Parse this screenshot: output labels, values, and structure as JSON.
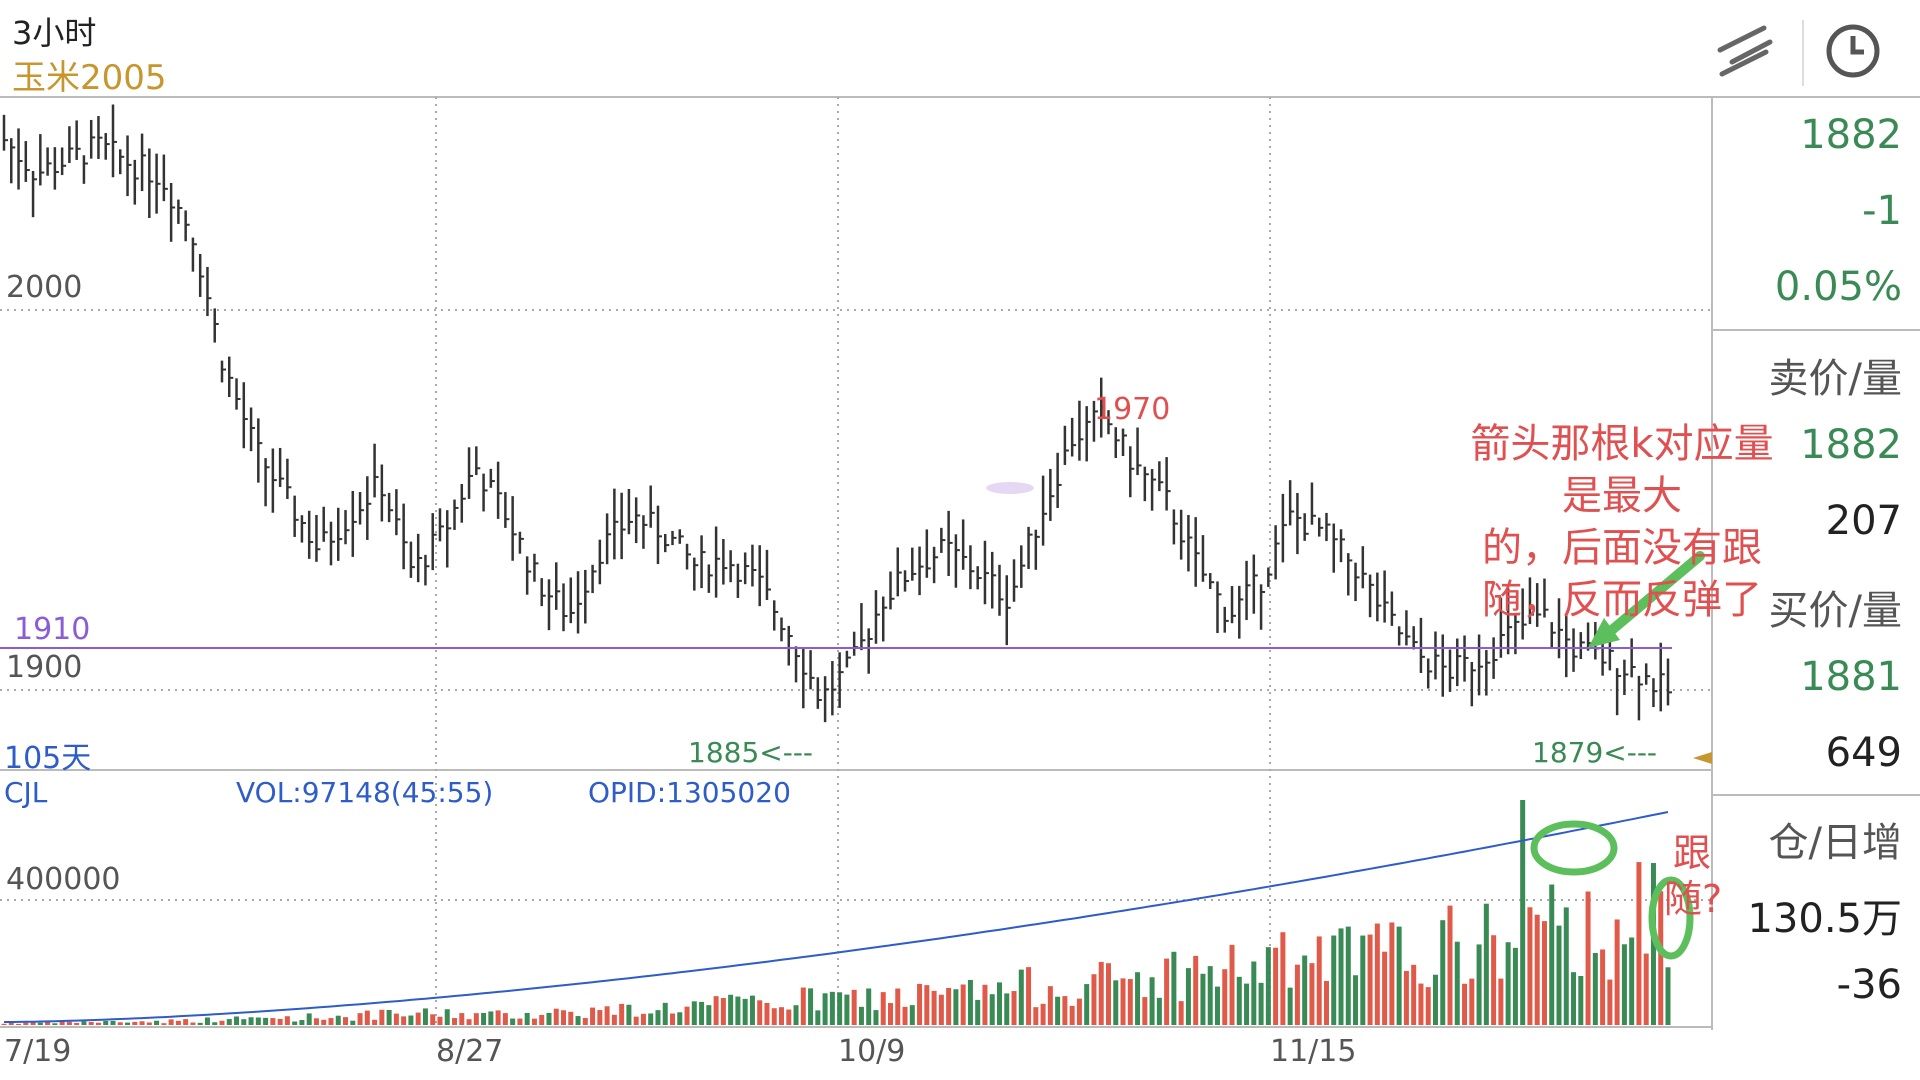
{
  "header": {
    "period": "3小时",
    "symbol": "玉米2005",
    "draw_tool_icon": "draw-line-icon",
    "history_icon": "clock-icon"
  },
  "colors": {
    "up": "#3a8a55",
    "down": "#e05a4a",
    "candle": "#333333",
    "support_line": "#8a5cd6",
    "oi_line": "#2e5cc8",
    "annotation": "#e05050",
    "highlight": "#5cbf5c",
    "symbol": "#c8962e"
  },
  "right_panel": {
    "last_price": "1882",
    "change": "-1",
    "change_pct": "0.05%",
    "ask_label": "卖价/量",
    "ask_price": "1882",
    "ask_vol": "207",
    "bid_label": "买价/量",
    "bid_price": "1881",
    "bid_vol": "649",
    "oi_label": "仓/日增",
    "oi_value": "130.5万",
    "oi_change": "-36"
  },
  "sub_header": {
    "indicator": "CJL",
    "vol_text": "VOL:97148(45:55)",
    "opid_text": "OPID:1305020"
  },
  "chart_labels": {
    "y_2000": "2000",
    "y_1900": "1900",
    "support": "1910",
    "days": "105天",
    "low_1": "1885<---",
    "low_2": "1879<---",
    "high": "1970",
    "vol_tick": "400000",
    "x_ticks": [
      "7/19",
      "8/27",
      "10/9",
      "11/15"
    ]
  },
  "annotations": {
    "arrow_note": [
      "箭头那根k对应量",
      "是最大",
      "的，后面没有跟",
      "随，反而反弹了"
    ],
    "follow_note": [
      "跟",
      "随?"
    ]
  },
  "chart_data": [
    {
      "type": "candlestick",
      "title": "",
      "x_ticks": [
        "7/19",
        "8/27",
        "10/9",
        "11/15"
      ],
      "y_ticks": [
        2000,
        1900
      ],
      "ylim": [
        1860,
        2060
      ],
      "horizontal_line": 1910,
      "labeled_low_1": 1885,
      "labeled_low_2": 1879,
      "labeled_high": 1970,
      "close_profile": [
        2048,
        2038,
        2042,
        2046,
        2041,
        2037,
        2020,
        1980,
        1955,
        1940,
        1925,
        1935,
        1945,
        1918,
        1930,
        1950,
        1935,
        1915,
        1905,
        1925,
        1935,
        1930,
        1920,
        1922,
        1915,
        1900,
        1880,
        1890,
        1910,
        1920,
        1925,
        1918,
        1910,
        1935,
        1958,
        1965,
        1950,
        1940,
        1920,
        1905,
        1915,
        1935,
        1930,
        1920,
        1905,
        1893,
        1888,
        1892,
        1900,
        1905,
        1895,
        1892,
        1888,
        1882
      ]
    },
    {
      "type": "bar",
      "title": "",
      "series": [
        {
          "name": "CJL",
          "values": [
            5000,
            8000,
            9000,
            10000,
            14000,
            18000,
            22000,
            26000,
            30000,
            34000,
            28000,
            36000,
            40000,
            45000,
            55000,
            60000,
            70000,
            75000,
            80000,
            85000,
            95000,
            110000,
            120000,
            130000,
            150000,
            160000,
            175000,
            190000,
            200000,
            215000,
            230000,
            250000,
            270000,
            300000,
            320000
          ]
        }
      ],
      "ytick": 400000,
      "open_interest_line": "rising"
    }
  ]
}
